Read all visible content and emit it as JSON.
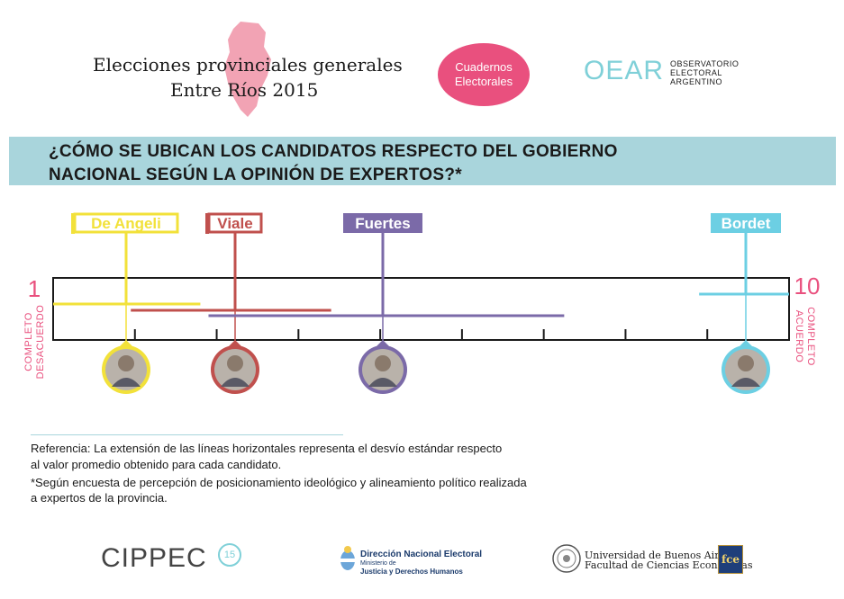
{
  "header": {
    "title_line1": "Elecciones provinciales generales",
    "title_line2": "Entre Ríos 2015",
    "pill_line1": "Cuadernos",
    "pill_line2": "Electorales",
    "oear_logo": "OEAR",
    "oear_line1": "OBSERVATORIO",
    "oear_line2": "ELECTORAL",
    "oear_line3": "ARGENTINO"
  },
  "banner": {
    "line1": "¿CÓMO SE UBICAN LOS CANDIDATOS RESPECTO DEL GOBIERNO",
    "line2": "NACIONAL SEGÚN LA OPINIÓN DE EXPERTOS?*"
  },
  "chart_data": {
    "type": "scale",
    "scale_min": 1,
    "scale_max": 10,
    "scale_min_label": "1",
    "scale_max_label": "10",
    "left_label_line1": "COMPLETO",
    "left_label_line2": "DESACUERDO",
    "right_label_line1": "COMPLETO",
    "right_label_line2": "ACUERDO",
    "candidates": [
      {
        "name": "De Angeli",
        "mean": 1.85,
        "low": 1.0,
        "high": 2.8,
        "color": "#f2e13a",
        "label_fill": false
      },
      {
        "name": "Viale",
        "mean": 3.3,
        "low": 1.95,
        "high": 4.4,
        "color": "#c0504d",
        "label_fill": false
      },
      {
        "name": "Fuertes",
        "mean": 5.0,
        "low": 2.9,
        "high": 7.25,
        "color": "#7b6aa8",
        "label_fill": true
      },
      {
        "name": "Bordet",
        "mean": 9.25,
        "low": 8.9,
        "high": 10.0,
        "color": "#6ccfe3",
        "label_fill": true
      }
    ]
  },
  "notes": {
    "ref_line1": "Referencia:  La extensión de las líneas horizontales representa el desvío estándar respecto",
    "ref_line2": "al valor promedio obtenido para cada candidato.",
    "ref_line3": "*Según encuesta de percepción de posicionamiento ideológico y alineamiento político realizada",
    "ref_line4": "a expertos de la provincia."
  },
  "footer": {
    "cippec": "CIPPEC",
    "cippec_badge": "15",
    "dne_line1": "Dirección Nacional Electoral",
    "dne_line2": "Ministerio de",
    "dne_line3": "Justicia y Derechos Humanos",
    "uba_line1": "Universidad de Buenos Aires",
    "uba_line2": "Facultad de Ciencias Económicas",
    "fce": "fce"
  }
}
